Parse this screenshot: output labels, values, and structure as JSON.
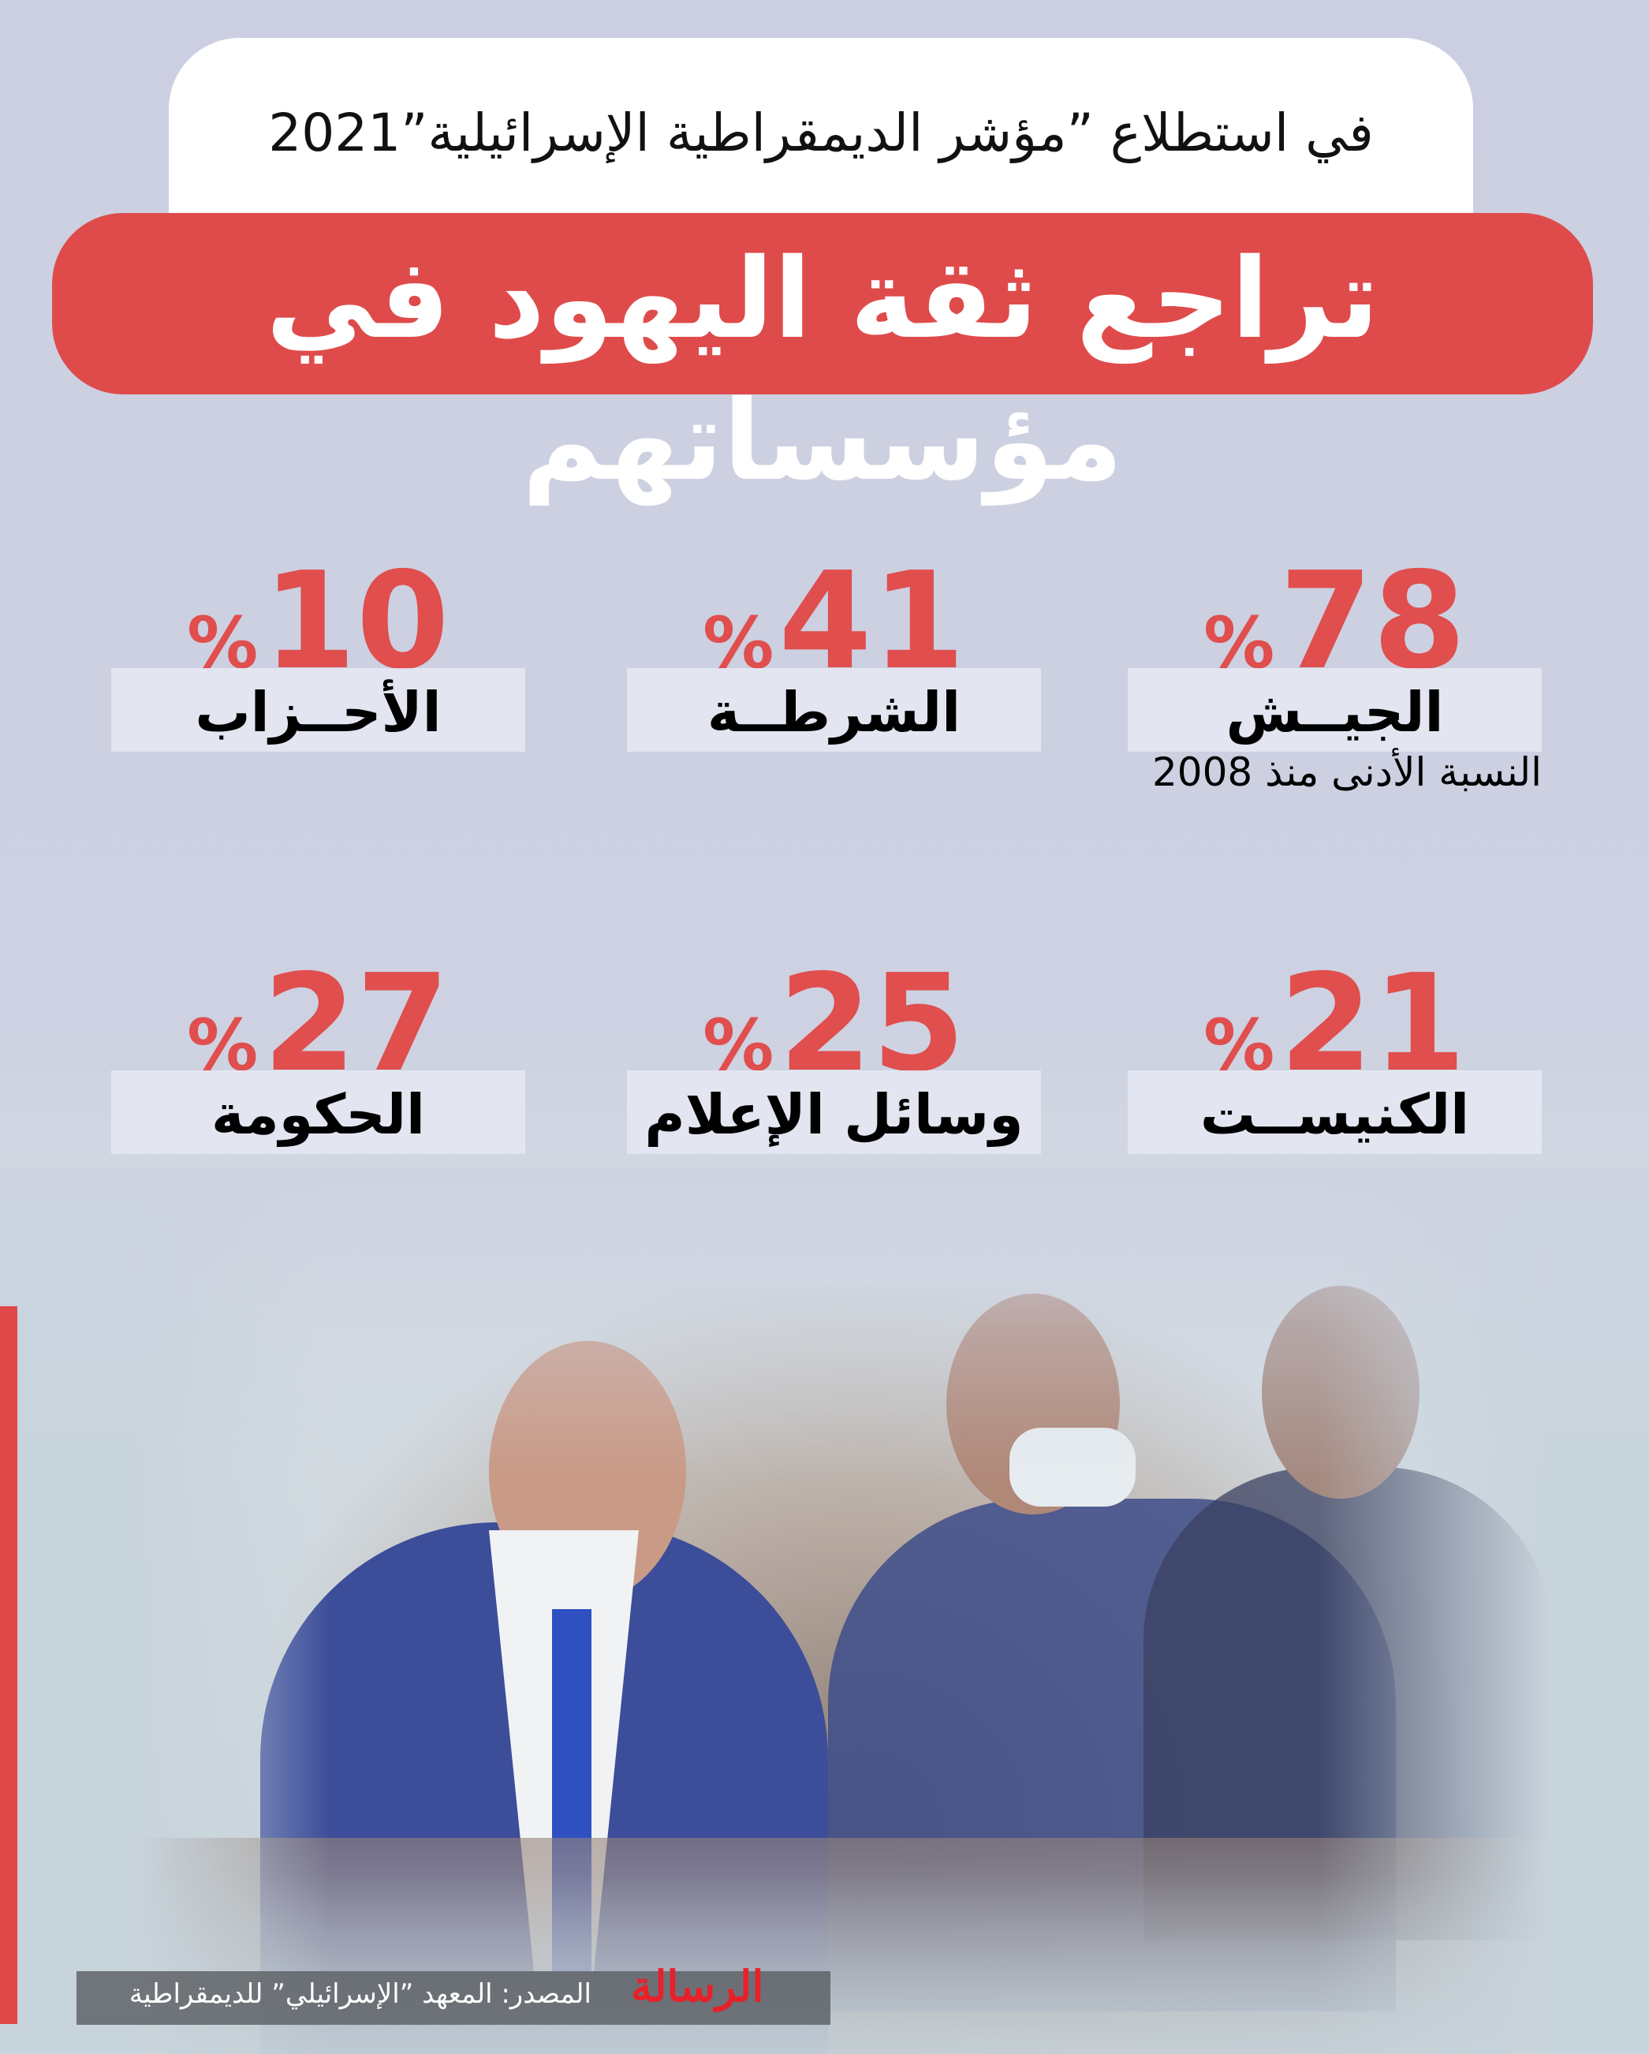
{
  "header": {
    "subtitle": "في استطلاع ”مؤشر الديمقراطية الإسرائيلية”2021",
    "title": "تراجع ثقة اليهود في مؤسساتهم"
  },
  "stats": [
    {
      "value": "78",
      "percent": "%",
      "label": "الجيــش",
      "note": "النسبة الأدنى منذ 2008"
    },
    {
      "value": "41",
      "percent": "%",
      "label": "الشرطــة"
    },
    {
      "value": "10",
      "percent": "%",
      "label": "الأحــزاب"
    },
    {
      "value": "21",
      "percent": "%",
      "label": "الكنيســت"
    },
    {
      "value": "25",
      "percent": "%",
      "label": "وسائل الإعلام"
    },
    {
      "value": "27",
      "percent": "%",
      "label": "الحكومة"
    }
  ],
  "footer": {
    "source": "المصدر: المعهد ”الإسرائيلي” للديمقراطية",
    "logo": "الرسالة"
  },
  "colors": {
    "accent": "#df4b4b",
    "background": "#cdd1e2",
    "number": "#e04e4e"
  }
}
